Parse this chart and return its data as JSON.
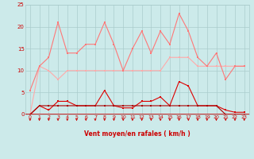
{
  "x": [
    0,
    1,
    2,
    3,
    4,
    5,
    6,
    7,
    8,
    9,
    10,
    11,
    12,
    13,
    14,
    15,
    16,
    17,
    18,
    19,
    20,
    21,
    22,
    23
  ],
  "line1": [
    0,
    11,
    10,
    8,
    10,
    10,
    10,
    10,
    10,
    10,
    10,
    10,
    10,
    10,
    10,
    13,
    13,
    13,
    11,
    11,
    11,
    11,
    11,
    11
  ],
  "line2": [
    5.5,
    11,
    13,
    21,
    14,
    14,
    16,
    16,
    21,
    16,
    10,
    15,
    19,
    14,
    19,
    16,
    23,
    19,
    13,
    11,
    14,
    8,
    11,
    11
  ],
  "line3": [
    0,
    2,
    1,
    3,
    3,
    2,
    2,
    2,
    5.5,
    2,
    1.5,
    1.5,
    3,
    3,
    4,
    2,
    7.5,
    6.5,
    2,
    2,
    2,
    1,
    0.5,
    0.5
  ],
  "line4": [
    0,
    2,
    2,
    2,
    2,
    2,
    2,
    2,
    2,
    2,
    2,
    2,
    2,
    2,
    2,
    2,
    2,
    2,
    2,
    2,
    2,
    0,
    0,
    0
  ],
  "line5": [
    0,
    0,
    0,
    0,
    0,
    0,
    0,
    0,
    0,
    0,
    0,
    0,
    0,
    0,
    0,
    0,
    0,
    0,
    0,
    0,
    0,
    0,
    0,
    0
  ],
  "bg_color": "#cceaea",
  "grid_color": "#aacccc",
  "line1_color": "#ffaaaa",
  "line2_color": "#ff7777",
  "line3_color": "#dd0000",
  "line4_color": "#aa0000",
  "line5_color": "#880000",
  "arrow_color": "#cc0000",
  "xlabel": "Vent moyen/en rafales ( km/h )",
  "xlim": [
    0,
    23
  ],
  "ylim": [
    0,
    25
  ],
  "yticks": [
    0,
    5,
    10,
    15,
    20,
    25
  ],
  "xticks": [
    0,
    1,
    2,
    3,
    4,
    5,
    6,
    7,
    8,
    9,
    10,
    11,
    12,
    13,
    14,
    15,
    16,
    17,
    18,
    19,
    20,
    21,
    22,
    23
  ]
}
